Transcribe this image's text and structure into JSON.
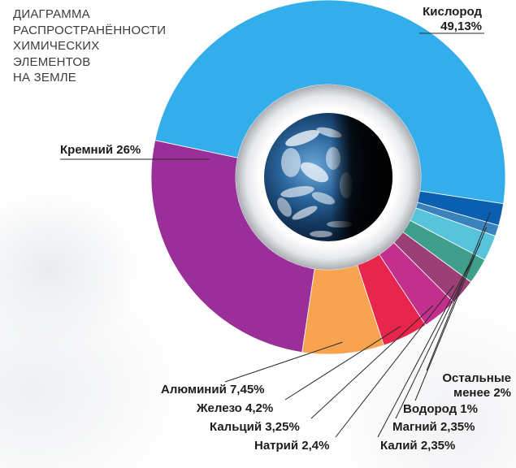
{
  "chart_data": {
    "type": "donut",
    "title": "ДИАГРАММА РАСПРОСТРАНЁННОСТИ ХИМИЧЕСКИХ ЭЛЕМЕНТОВ НА ЗЕМЛЕ",
    "title_lines": [
      "ДИАГРАММА",
      "РАСПРОСТРАНЁННОСТИ",
      "ХИМИЧЕСКИХ",
      "ЭЛЕМЕНТОВ",
      "НА ЗЕМЛЕ"
    ],
    "unit": "%",
    "center_image": "earth-globe",
    "slices": [
      {
        "name": "Кислород",
        "value": 49.13,
        "label_line1": "Кислород",
        "label_line2": "49,13%",
        "color": "#33AEEB"
      },
      {
        "name": "Остальные менее 2%",
        "value": 2.0,
        "label_line1": "Остальные",
        "label_line2": "менее 2%",
        "color": "#0A5FB0"
      },
      {
        "name": "Водород",
        "value": 1.0,
        "label_line1": "Водород 1%",
        "color": "#3A82BC"
      },
      {
        "name": "Магний",
        "value": 2.35,
        "label_line1": "Магний 2,35%",
        "color": "#58C4DC"
      },
      {
        "name": "Калий",
        "value": 2.35,
        "label_line1": "Калий 2,35%",
        "color": "#3F9F8C"
      },
      {
        "name": "Натрий",
        "value": 2.4,
        "label_line1": "Натрий 2,4%",
        "color": "#9C3F76"
      },
      {
        "name": "Кальций",
        "value": 3.25,
        "label_line1": "Кальций 3,25%",
        "color": "#C22F8C"
      },
      {
        "name": "Железо",
        "value": 4.2,
        "label_line1": "Железо 4,2%",
        "color": "#E8254C"
      },
      {
        "name": "Алюминий",
        "value": 7.45,
        "label_line1": "Алюминий 7,45%",
        "color": "#F7A34F"
      },
      {
        "name": "Кремний",
        "value": 26,
        "label_line1": "Кремний 26%",
        "color": "#9A2F99"
      }
    ]
  }
}
